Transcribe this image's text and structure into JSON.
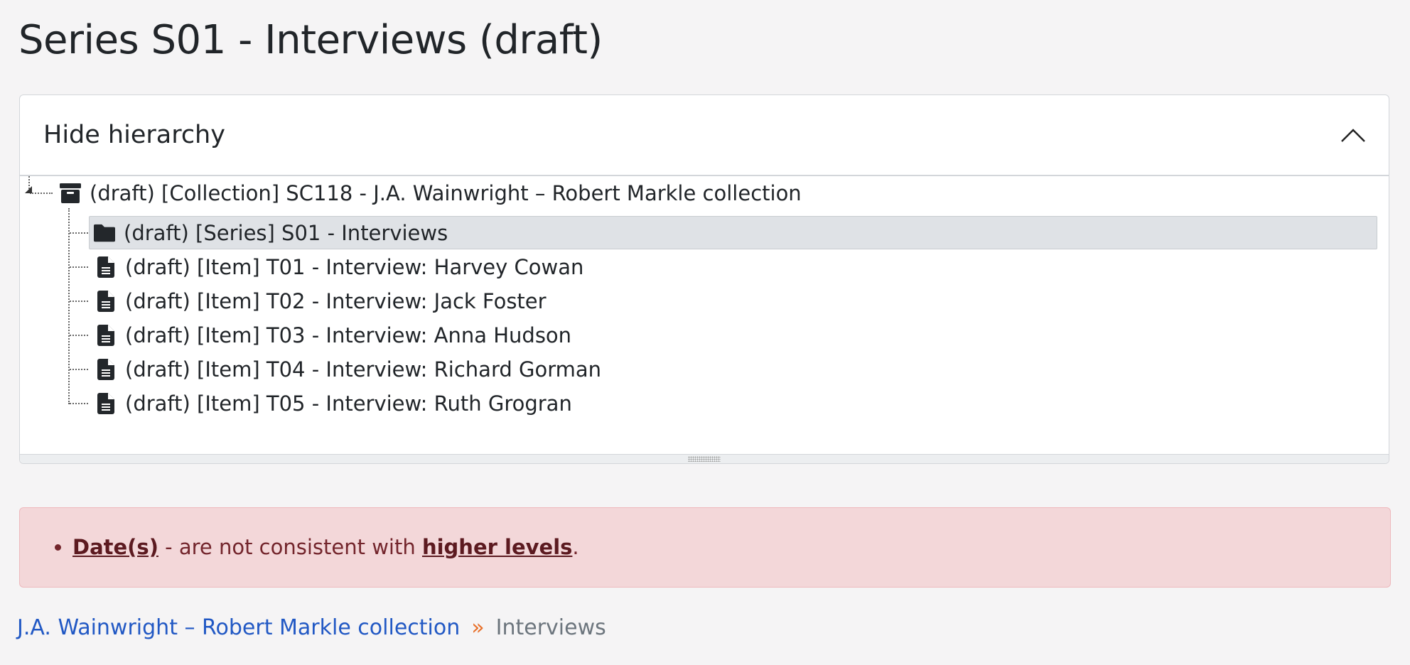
{
  "page": {
    "title": "Series S01 - Interviews (draft)"
  },
  "hierarchy": {
    "toggle_label": "Hide hierarchy",
    "toggle_icon": "chevron-up-icon",
    "root": {
      "label": "(draft) [Collection] SC118 - J.A. Wainwright – Robert Markle collection",
      "icon": "archive-box-icon"
    },
    "children": [
      {
        "label": "(draft) [Series] S01 - Interviews",
        "icon": "folder-icon",
        "selected": true
      },
      {
        "label": "(draft) [Item] T01 - Interview: Harvey Cowan",
        "icon": "file-text-icon"
      },
      {
        "label": "(draft) [Item] T02 - Interview: Jack Foster",
        "icon": "file-text-icon"
      },
      {
        "label": "(draft) [Item] T03 - Interview: Anna Hudson",
        "icon": "file-text-icon"
      },
      {
        "label": "(draft) [Item] T04 - Interview: Richard Gorman",
        "icon": "file-text-icon"
      },
      {
        "label": "(draft) [Item] T05 - Interview: Ruth Grogran",
        "icon": "file-text-icon"
      }
    ]
  },
  "alert": {
    "link1": "Date(s)",
    "text": " - are not consistent with ",
    "link2": "higher levels",
    "end": "."
  },
  "breadcrumb": {
    "parent": "J.A. Wainwright – Robert Markle collection",
    "separator": "»",
    "current": "Interviews"
  },
  "colors": {
    "link": "#2158c4",
    "alert_bg": "#f3d7d9",
    "alert_text": "#73252c",
    "separator": "#e8702a",
    "selected_row": "#dfe2e6"
  }
}
